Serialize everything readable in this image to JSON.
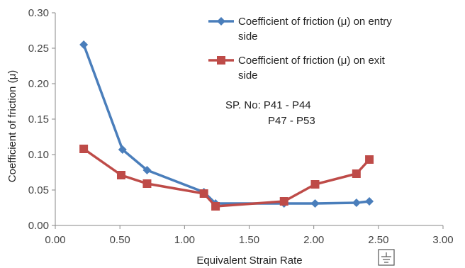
{
  "chart_data": {
    "type": "line",
    "xlabel": "Equivalent Strain Rate",
    "ylabel": "Coefficient of friction (μ)",
    "xlim": [
      0,
      3
    ],
    "ylim": [
      0,
      0.3
    ],
    "x_ticks": [
      0,
      0.5,
      1,
      1.5,
      2,
      2.5,
      3
    ],
    "y_ticks": [
      0,
      0.05,
      0.1,
      0.15,
      0.2,
      0.25,
      0.3
    ],
    "x_tick_labels": [
      "0.00",
      "0.50",
      "1.00",
      "1.50",
      "2.00",
      "2.50",
      "3.00"
    ],
    "y_tick_labels": [
      "0.00",
      "0.05",
      "0.10",
      "0.15",
      "0.20",
      "0.25",
      "0.30"
    ],
    "grid": false,
    "legend": "top-right",
    "series": [
      {
        "name_lines": [
          "Coefficient of friction (μ) on entry",
          "side"
        ],
        "marker": "diamond",
        "color": "#4a7ebb",
        "x": [
          0.22,
          0.52,
          0.71,
          1.15,
          1.24,
          1.77,
          2.01,
          2.33,
          2.43
        ],
        "y": [
          0.255,
          0.107,
          0.078,
          0.047,
          0.031,
          0.031,
          0.031,
          0.032,
          0.034
        ]
      },
      {
        "name_lines": [
          "Coefficient of friction (μ) on exit",
          "side"
        ],
        "marker": "square",
        "color": "#be4b48",
        "x": [
          0.22,
          0.51,
          0.71,
          1.15,
          1.24,
          1.77,
          2.01,
          2.33,
          2.43
        ],
        "y": [
          0.108,
          0.071,
          0.059,
          0.045,
          0.027,
          0.034,
          0.058,
          0.073,
          0.093
        ]
      }
    ],
    "annotations": [
      "SP. No: P41 - P44",
      "P47 - P53"
    ]
  }
}
